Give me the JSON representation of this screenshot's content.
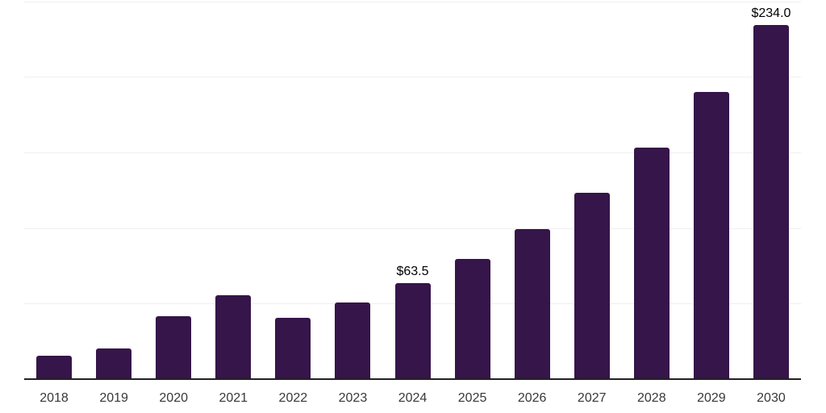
{
  "chart": {
    "background": "#ffffff",
    "bar_color": "#36154a",
    "grid_color": "#efefef",
    "axis_color": "#222222",
    "tick_label_color": "#383838",
    "data_label_color": "#000000"
  },
  "chart_data": {
    "type": "bar",
    "title": "",
    "xlabel": "",
    "ylabel": "",
    "categories": [
      "2018",
      "2019",
      "2020",
      "2021",
      "2022",
      "2023",
      "2024",
      "2025",
      "2026",
      "2027",
      "2028",
      "2029",
      "2030"
    ],
    "values": [
      15.4,
      20.1,
      41.8,
      55.5,
      40.4,
      50.5,
      63.5,
      79.5,
      99.2,
      123.3,
      153.2,
      189.8,
      234.0
    ],
    "data_labels": [
      null,
      null,
      null,
      null,
      null,
      null,
      "$63.5",
      null,
      null,
      null,
      null,
      null,
      "$234.0"
    ],
    "ylim": [
      0,
      250
    ],
    "yticks": [
      0,
      50,
      100,
      150,
      200,
      250
    ],
    "y_tick_labels_shown": false,
    "grid": "horizontal",
    "legend": false
  }
}
